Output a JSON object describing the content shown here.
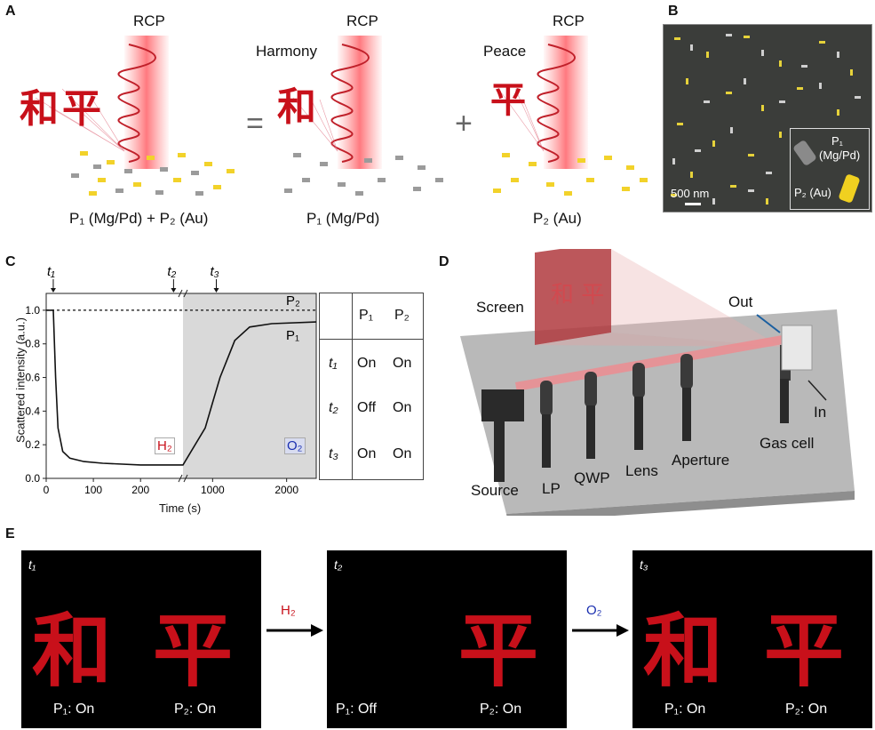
{
  "panel_a": {
    "letter": "A",
    "rcp_labels": [
      "RCP",
      "RCP",
      "RCP"
    ],
    "harmony": "Harmony",
    "peace": "Peace",
    "equals": "=",
    "plus": "+",
    "caption_left": "P₁ (Mg/Pd) + P₂ (Au)",
    "caption_mid": "P₁ (Mg/Pd)",
    "caption_right": "P₂ (Au)",
    "han_he": "和",
    "han_ping": "平",
    "colors": {
      "beam": "#e8404a",
      "au": "#f2d22a",
      "mgpd": "#a9a9a9"
    }
  },
  "panel_b": {
    "letter": "B",
    "legend_p1": "P₁",
    "legend_p1_sub": "(Mg/Pd)",
    "legend_p2": "P₂ (Au)",
    "scalebar": "500 nm"
  },
  "panel_c": {
    "letter": "C",
    "ylabel": "Scattered intensity (a.u.)",
    "xlabel": "Time (s)",
    "yticks": [
      "0.0",
      "0.2",
      "0.4",
      "0.6",
      "0.8",
      "1.0"
    ],
    "xticks_left": [
      "0",
      "100",
      "200"
    ],
    "xticks_right": [
      "1000",
      "2000"
    ],
    "t_markers": [
      "t₁",
      "t₂",
      "t₃"
    ],
    "curve_p1": "P₁",
    "curve_p2": "P₂",
    "h2": "H₂",
    "o2": "O₂",
    "table": {
      "headers": [
        "",
        "P₁",
        "P₂"
      ],
      "rows": [
        [
          "t₁",
          "On",
          "On"
        ],
        [
          "t₂",
          "Off",
          "On"
        ],
        [
          "t₃",
          "On",
          "On"
        ]
      ]
    }
  },
  "chart_data": {
    "type": "line",
    "xlabel": "Time (s)",
    "ylabel": "Scattered intensity (a.u.)",
    "ylim": [
      0,
      1.1
    ],
    "x_break": true,
    "series": [
      {
        "name": "P₁",
        "x": [
          0,
          15,
          20,
          25,
          35,
          50,
          80,
          120,
          200,
          280,
          600,
          900,
          1000,
          1100,
          1300,
          1500,
          1800,
          2400
        ],
        "values": [
          1.0,
          1.0,
          0.6,
          0.3,
          0.16,
          0.12,
          0.1,
          0.09,
          0.08,
          0.08,
          0.08,
          0.3,
          0.45,
          0.6,
          0.82,
          0.9,
          0.92,
          0.93
        ]
      },
      {
        "name": "P₂",
        "x": [
          0,
          2400
        ],
        "values": [
          1.0,
          1.0
        ]
      }
    ]
  },
  "panel_d": {
    "letter": "D",
    "screen": "Screen",
    "out": "Out",
    "in": "In",
    "source": "Source",
    "lp": "LP",
    "qwp": "QWP",
    "lens": "Lens",
    "aperture": "Aperture",
    "gas_cell": "Gas cell"
  },
  "panel_e": {
    "letter": "E",
    "frames": [
      {
        "t": "t₁",
        "p1": "P₁: On",
        "p2": "P₂: On"
      },
      {
        "t": "t₂",
        "p1": "P₁: Off",
        "p2": "P₂: On"
      },
      {
        "t": "t₃",
        "p1": "P₁: On",
        "p2": "P₂: On"
      }
    ],
    "arrow1": "H₂",
    "arrow2": "O₂"
  }
}
